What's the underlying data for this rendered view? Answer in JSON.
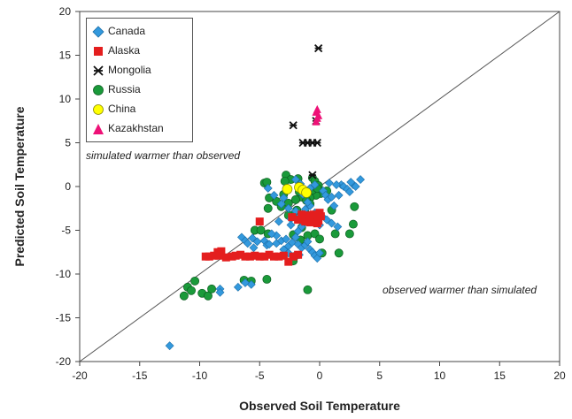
{
  "chart_data": {
    "type": "scatter",
    "xlabel": "Observed Soil Temperature",
    "ylabel": "Predicted Soil Temperature",
    "xlim": [
      -20,
      20
    ],
    "ylim": [
      -20,
      20
    ],
    "xticks": [
      "-20",
      "-15",
      "-10",
      "-5",
      "0",
      "5",
      "10",
      "15",
      "20"
    ],
    "yticks": [
      "20",
      "15",
      "10",
      "5",
      "0",
      "-5",
      "-10",
      "-15",
      "-20"
    ],
    "grid": false,
    "legend_position": "top-left",
    "reference_line": "1:1",
    "annotations": [
      "simulated warmer than observed",
      "observed warmer than simulated"
    ],
    "series": [
      {
        "name": "Canada",
        "marker": "diamond",
        "color": "#3399dd",
        "points": [
          [
            -12.5,
            -18.2
          ],
          [
            -8.3,
            -11.7
          ],
          [
            -8.3,
            -12.1
          ],
          [
            -6.8,
            -11.5
          ],
          [
            -6.2,
            -11.0
          ],
          [
            -5.7,
            -11.2
          ],
          [
            -6.5,
            -5.8
          ],
          [
            -6.2,
            -6.2
          ],
          [
            -6.0,
            -6.5
          ],
          [
            -5.5,
            -7.0
          ],
          [
            -5.2,
            -6.3
          ],
          [
            -5.6,
            -5.9
          ],
          [
            -4.6,
            -6.2
          ],
          [
            -4.4,
            -6.7
          ],
          [
            -4.2,
            -6.6
          ],
          [
            -3.6,
            -6.5
          ],
          [
            -3.2,
            -6.2
          ],
          [
            -2.8,
            -6.0
          ],
          [
            -2.6,
            -6.8
          ],
          [
            -2.3,
            -6.4
          ],
          [
            -2.0,
            -5.8
          ],
          [
            -1.8,
            -6.6
          ],
          [
            -1.5,
            -7.0
          ],
          [
            -1.2,
            -6.7
          ],
          [
            -1.0,
            -6.3
          ],
          [
            -0.8,
            -7.2
          ],
          [
            -0.6,
            -7.5
          ],
          [
            -0.4,
            -7.9
          ],
          [
            -0.2,
            -8.2
          ],
          [
            0.0,
            -7.6
          ],
          [
            -2.2,
            -8.0
          ],
          [
            -2.6,
            -7.6
          ],
          [
            -3.0,
            -7.2
          ],
          [
            -1.7,
            -7.8
          ],
          [
            -3.6,
            -5.6
          ],
          [
            -4.0,
            -5.4
          ],
          [
            -3.4,
            -4.0
          ],
          [
            -2.4,
            -3.7
          ],
          [
            -1.6,
            -3.3
          ],
          [
            -1.2,
            -2.6
          ],
          [
            -0.8,
            -2.2
          ],
          [
            -0.4,
            -3.0
          ],
          [
            0.2,
            -3.4
          ],
          [
            0.6,
            -3.8
          ],
          [
            1.0,
            -4.2
          ],
          [
            1.5,
            -4.6
          ],
          [
            -0.8,
            -0.2
          ],
          [
            -0.4,
            0.2
          ],
          [
            0.3,
            -0.5
          ],
          [
            0.5,
            -1.0
          ],
          [
            0.7,
            -1.5
          ],
          [
            1.0,
            -1.2
          ],
          [
            1.2,
            -2.2
          ],
          [
            1.6,
            -1.0
          ],
          [
            1.8,
            0.2
          ],
          [
            2.0,
            0.0
          ],
          [
            2.3,
            -0.3
          ],
          [
            2.5,
            -0.6
          ],
          [
            2.8,
            0.2
          ],
          [
            3.0,
            0.0
          ],
          [
            3.4,
            0.8
          ],
          [
            -1.6,
            0.3
          ],
          [
            -2.0,
            0.8
          ],
          [
            -4.3,
            -0.2
          ],
          [
            -3.8,
            -1.0
          ],
          [
            -3.0,
            -1.3
          ],
          [
            -1.0,
            -1.8
          ],
          [
            -1.5,
            -4.6
          ],
          [
            -0.6,
            -4.0
          ],
          [
            0.0,
            -4.4
          ],
          [
            2.6,
            0.5
          ],
          [
            -2.0,
            -2.8
          ],
          [
            -2.6,
            -2.5
          ],
          [
            -3.2,
            -2.0
          ],
          [
            -1.8,
            -5.1
          ],
          [
            -1.4,
            -0.9
          ],
          [
            0.8,
            0.4
          ],
          [
            1.4,
            0.2
          ],
          [
            -2.4,
            -4.4
          ]
        ]
      },
      {
        "name": "Alaska",
        "marker": "square",
        "color": "#e41e1e",
        "points": [
          [
            -9.5,
            -8.0
          ],
          [
            -9.2,
            -8.0
          ],
          [
            -8.8,
            -7.9
          ],
          [
            -8.5,
            -7.5
          ],
          [
            -8.2,
            -7.4
          ],
          [
            -8.4,
            -7.9
          ],
          [
            -7.8,
            -8.1
          ],
          [
            -7.3,
            -8.0
          ],
          [
            -7.0,
            -7.9
          ],
          [
            -6.6,
            -7.8
          ],
          [
            -6.2,
            -8.0
          ],
          [
            -5.8,
            -8.0
          ],
          [
            -5.4,
            -7.9
          ],
          [
            -5.0,
            -8.0
          ],
          [
            -4.6,
            -8.0
          ],
          [
            -4.2,
            -7.8
          ],
          [
            -3.8,
            -8.0
          ],
          [
            -3.4,
            -8.0
          ],
          [
            -3.0,
            -7.9
          ],
          [
            -2.6,
            -8.6
          ],
          [
            -2.2,
            -8.0
          ],
          [
            -1.8,
            -7.8
          ],
          [
            -5.0,
            -4.0
          ],
          [
            -2.3,
            -3.5
          ],
          [
            -1.8,
            -3.8
          ],
          [
            -1.3,
            -3.5
          ],
          [
            -1.1,
            -3.3
          ],
          [
            -0.9,
            -3.7
          ],
          [
            -0.7,
            -3.4
          ],
          [
            -0.5,
            -3.2
          ],
          [
            -0.3,
            -3.5
          ],
          [
            -0.1,
            -3.9
          ],
          [
            0.1,
            -3.4
          ],
          [
            -1.2,
            -4.0
          ],
          [
            -0.8,
            -4.1
          ],
          [
            -0.2,
            -4.2
          ],
          [
            0.0,
            -3.0
          ],
          [
            -1.5,
            -3.2
          ]
        ]
      },
      {
        "name": "Mongolia",
        "marker": "asterisk",
        "color": "#111111",
        "points": [
          [
            -0.1,
            15.8
          ],
          [
            -2.2,
            7.0
          ],
          [
            -0.3,
            7.5
          ],
          [
            -1.4,
            5.0
          ],
          [
            -1.0,
            5.0
          ],
          [
            -0.6,
            5.0
          ],
          [
            -0.2,
            5.0
          ],
          [
            -0.6,
            1.3
          ]
        ]
      },
      {
        "name": "Russia",
        "marker": "circle",
        "color": "#1a9a3a",
        "points": [
          [
            -11.3,
            -12.5
          ],
          [
            -11.0,
            -11.5
          ],
          [
            -10.7,
            -11.9
          ],
          [
            -10.4,
            -10.8
          ],
          [
            -9.8,
            -12.2
          ],
          [
            -9.3,
            -12.5
          ],
          [
            -9.0,
            -11.7
          ],
          [
            -6.3,
            -10.7
          ],
          [
            -5.7,
            -10.8
          ],
          [
            -4.4,
            -10.6
          ],
          [
            -5.4,
            -5.0
          ],
          [
            -4.9,
            -5.0
          ],
          [
            -4.3,
            -5.4
          ],
          [
            -4.3,
            -2.5
          ],
          [
            -4.6,
            0.4
          ],
          [
            -4.4,
            0.5
          ],
          [
            -2.8,
            1.3
          ],
          [
            -2.4,
            0.8
          ],
          [
            -1.8,
            0.9
          ],
          [
            -2.9,
            0.6
          ],
          [
            -3.6,
            -1.7
          ],
          [
            -3.2,
            -2.3
          ],
          [
            -2.6,
            -1.9
          ],
          [
            -1.9,
            -2.7
          ],
          [
            -1.5,
            -1.2
          ],
          [
            -0.6,
            1.0
          ],
          [
            -0.4,
            0.6
          ],
          [
            -0.1,
            0.1
          ],
          [
            0.1,
            -0.8
          ],
          [
            -0.3,
            -1.0
          ],
          [
            -0.8,
            -1.3
          ],
          [
            -1.1,
            -1.6
          ],
          [
            -0.6,
            -0.4
          ],
          [
            -0.2,
            -0.2
          ],
          [
            -1.2,
            -3.0
          ],
          [
            -2.1,
            -3.1
          ],
          [
            -2.6,
            -3.3
          ],
          [
            -2.2,
            -5.5
          ],
          [
            -1.6,
            -6.1
          ],
          [
            -1.0,
            -5.6
          ],
          [
            -0.4,
            -5.4
          ],
          [
            0.0,
            -6.0
          ],
          [
            0.2,
            -7.6
          ],
          [
            -2.1,
            -8.0
          ],
          [
            -2.2,
            -8.5
          ],
          [
            -1.0,
            -11.8
          ],
          [
            1.3,
            -5.4
          ],
          [
            1.6,
            -7.6
          ],
          [
            2.5,
            -5.4
          ],
          [
            2.8,
            -4.3
          ],
          [
            2.9,
            -2.3
          ],
          [
            0.6,
            -0.5
          ],
          [
            1.0,
            -2.7
          ],
          [
            -1.5,
            -4.7
          ],
          [
            -3.0,
            -0.9
          ],
          [
            -2.0,
            -1.5
          ],
          [
            -0.8,
            -2.0
          ],
          [
            -4.2,
            -1.3
          ],
          [
            -1.7,
            -0.6
          ]
        ]
      },
      {
        "name": "China",
        "marker": "circle",
        "color": "#ffff00",
        "points": [
          [
            -2.7,
            -0.3
          ],
          [
            -1.7,
            -0.1
          ],
          [
            -1.4,
            -0.4
          ],
          [
            -1.1,
            -0.7
          ]
        ]
      },
      {
        "name": "Kazakhstan",
        "marker": "triangle",
        "color": "#ee1177",
        "points": [
          [
            -0.2,
            8.8
          ],
          [
            -0.3,
            8.5
          ],
          [
            -0.1,
            8.1
          ],
          [
            -0.2,
            7.8
          ],
          [
            -0.3,
            7.4
          ]
        ]
      }
    ]
  }
}
